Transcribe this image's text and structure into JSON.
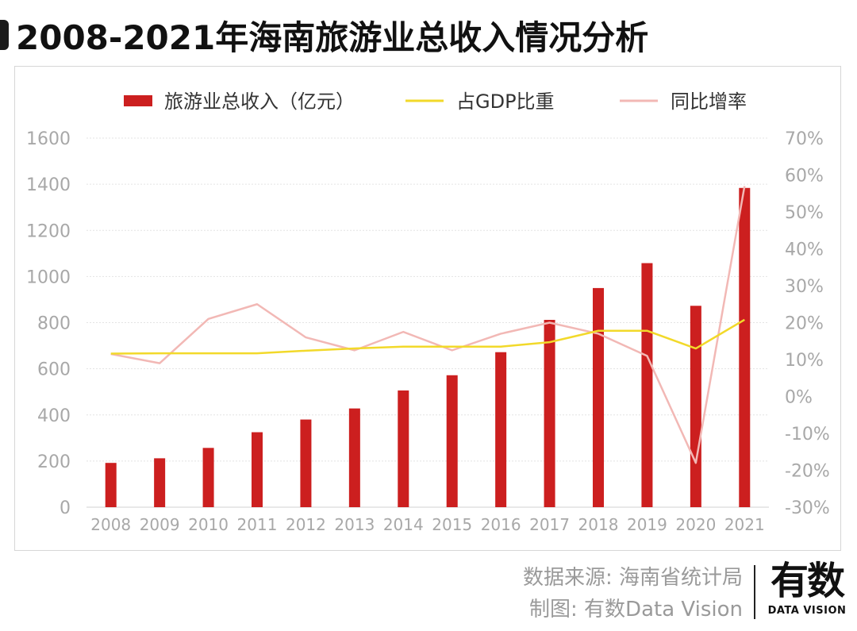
{
  "title": "2008-2021年海南旅游业总收入情况分析",
  "footer": {
    "source": "数据来源: 海南省统计局",
    "made_by": "制图: 有数Data Vision"
  },
  "logo": {
    "main": "有数",
    "sub": "DATA VISION"
  },
  "colors": {
    "bar": "#cc1f1f",
    "gdp_line": "#f2d92a",
    "yoy_line": "#f2b8b5",
    "grid": "#e3e3e3",
    "tick": "#a8a8a8"
  },
  "chart_data": {
    "type": "bar",
    "title": "",
    "categories": [
      "2008",
      "2009",
      "2010",
      "2011",
      "2012",
      "2013",
      "2014",
      "2015",
      "2016",
      "2017",
      "2018",
      "2019",
      "2020",
      "2021"
    ],
    "series": [
      {
        "name": "旅游业总收入（亿元）",
        "type": "bar",
        "axis": "left",
        "values": [
          192,
          212,
          257,
          325,
          380,
          428,
          506,
          572,
          672,
          812,
          950,
          1058,
          873,
          1384
        ]
      },
      {
        "name": "占GDP比重",
        "type": "line",
        "axis": "right",
        "values": [
          11.6,
          11.7,
          11.7,
          11.7,
          12.4,
          13.0,
          13.5,
          13.5,
          13.5,
          14.7,
          17.8,
          17.8,
          13.0,
          20.8
        ]
      },
      {
        "name": "同比增率",
        "type": "line",
        "axis": "right",
        "values": [
          11.5,
          9.0,
          21.0,
          25.0,
          16.0,
          12.5,
          17.5,
          12.5,
          17.0,
          20.0,
          17.0,
          11.0,
          -18.0,
          57.0
        ]
      }
    ],
    "y_left": {
      "ylim": [
        0,
        1600
      ],
      "ticks": [
        "0",
        "200",
        "400",
        "600",
        "800",
        "1000",
        "1200",
        "1400",
        "1600"
      ]
    },
    "y_right": {
      "ylim": [
        -30,
        70
      ],
      "ticks": [
        "-30%",
        "-20%",
        "-10%",
        "0%",
        "10%",
        "20%",
        "30%",
        "40%",
        "50%",
        "60%",
        "70%"
      ]
    },
    "grid": true,
    "legend": "top-center"
  }
}
